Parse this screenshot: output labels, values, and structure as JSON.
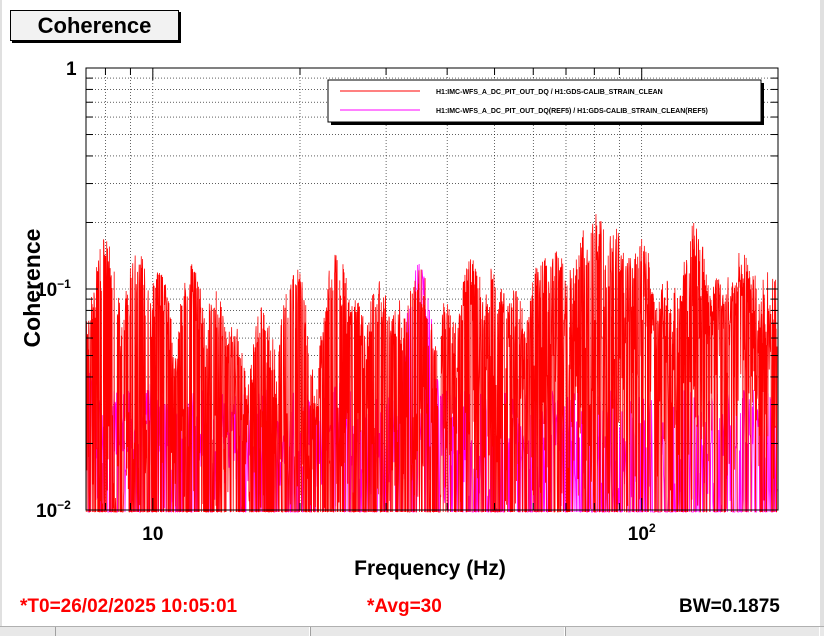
{
  "window": {
    "title": "Coherence"
  },
  "footer": {
    "t0": "*T0=26/02/2025 10:05:01",
    "avg": "*Avg=30",
    "bw": "BW=0.1875"
  },
  "colors": {
    "series1": "#ff0000",
    "series2": "#ff00ff",
    "accent_text": "#ff0000"
  },
  "chart_data": {
    "type": "line",
    "xlabel": "Frequency (Hz)",
    "ylabel": "Coherence",
    "xscale": "log",
    "yscale": "log",
    "xlim": [
      7.3,
      190
    ],
    "ylim": [
      0.01,
      1
    ],
    "grid": true,
    "legend_position": "top-right",
    "x_ticks": [
      {
        "value": 10,
        "label": "10"
      },
      {
        "value": 100,
        "label": "10",
        "exp": "2"
      }
    ],
    "y_ticks": [
      {
        "value": 1,
        "label": "1"
      },
      {
        "value": 0.1,
        "label": "10",
        "exp": "−1"
      },
      {
        "value": 0.01,
        "label": "10",
        "exp": "−2"
      }
    ],
    "series": [
      {
        "name": "H1:IMC-WFS_A_DC_PIT_OUT_DQ / H1:GDS-CALIB_STRAIN_CLEAN",
        "color": "#ff0000",
        "peaks": [
          [
            7.6,
            0.1
          ],
          [
            8.0,
            0.17
          ],
          [
            8.6,
            0.05
          ],
          [
            9.3,
            0.15
          ],
          [
            10.3,
            0.12
          ],
          [
            11.2,
            0.065
          ],
          [
            12.0,
            0.13
          ],
          [
            13.4,
            0.1
          ],
          [
            14.6,
            0.07
          ],
          [
            16.8,
            0.085
          ],
          [
            19.5,
            0.13
          ],
          [
            23.8,
            0.15
          ],
          [
            26.0,
            0.09
          ],
          [
            29.0,
            0.11
          ],
          [
            32.0,
            0.09
          ],
          [
            35.0,
            0.13
          ],
          [
            40.0,
            0.09
          ],
          [
            45.0,
            0.14
          ],
          [
            50.0,
            0.13
          ],
          [
            55.0,
            0.1
          ],
          [
            62.0,
            0.15
          ],
          [
            67.0,
            0.16
          ],
          [
            72.0,
            0.13
          ],
          [
            77.0,
            0.19
          ],
          [
            81.0,
            0.22
          ],
          [
            88.0,
            0.19
          ],
          [
            93.0,
            0.15
          ],
          [
            100.0,
            0.17
          ],
          [
            112.0,
            0.11
          ],
          [
            128.0,
            0.2
          ],
          [
            145.0,
            0.12
          ],
          [
            160.0,
            0.15
          ],
          [
            180.0,
            0.09
          ]
        ]
      },
      {
        "name": "H1:IMC-WFS_A_DC_PIT_OUT_DQ(REF5) / H1:GDS-CALIB_STRAIN_CLEAN(REF5)",
        "color": "#ff00ff",
        "peaks": [
          [
            7.4,
            0.045
          ],
          [
            8.2,
            0.04
          ],
          [
            9.0,
            0.03
          ],
          [
            10.0,
            0.04
          ],
          [
            11.0,
            0.035
          ],
          [
            12.5,
            0.025
          ],
          [
            14.0,
            0.035
          ],
          [
            16.0,
            0.03
          ],
          [
            18.0,
            0.025
          ],
          [
            21.0,
            0.03
          ],
          [
            24.0,
            0.04
          ],
          [
            28.0,
            0.03
          ],
          [
            32.0,
            0.03
          ],
          [
            35.0,
            0.13
          ],
          [
            38.0,
            0.04
          ],
          [
            45.0,
            0.025
          ],
          [
            55.0,
            0.03
          ],
          [
            65.0,
            0.03
          ]
        ]
      }
    ]
  }
}
